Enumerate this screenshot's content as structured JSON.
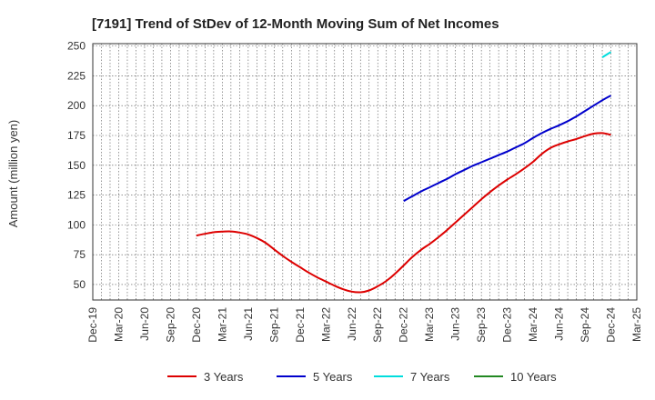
{
  "chart_data": {
    "type": "line",
    "title": "[7191]  Trend of StDev of 12-Month Moving Sum of Net Incomes",
    "xlabel": "",
    "ylabel": "Amount (million yen)",
    "ylim": [
      37,
      252
    ],
    "yticks": [
      50,
      75,
      100,
      125,
      150,
      175,
      200,
      225,
      250
    ],
    "xticks": [
      "Dec-19",
      "Mar-20",
      "Jun-20",
      "Sep-20",
      "Dec-20",
      "Mar-21",
      "Jun-21",
      "Sep-21",
      "Dec-21",
      "Mar-22",
      "Jun-22",
      "Sep-22",
      "Dec-22",
      "Mar-23",
      "Jun-23",
      "Sep-23",
      "Dec-23",
      "Mar-24",
      "Jun-24",
      "Sep-24",
      "Dec-24",
      "Mar-25"
    ],
    "grid": true,
    "legend_position": "bottom",
    "series": [
      {
        "name": "3 Years",
        "color": "#dd0000",
        "points": [
          [
            "Dec-20",
            91
          ],
          [
            "Jan-21",
            92.5
          ],
          [
            "Feb-21",
            93.8
          ],
          [
            "Mar-21",
            94.3
          ],
          [
            "Apr-21",
            94.5
          ],
          [
            "May-21",
            93.6
          ],
          [
            "Jun-21",
            92
          ],
          [
            "Jul-21",
            89
          ],
          [
            "Aug-21",
            85
          ],
          [
            "Sep-21",
            79.5
          ],
          [
            "Oct-21",
            74
          ],
          [
            "Nov-21",
            69
          ],
          [
            "Dec-21",
            64.5
          ],
          [
            "Jan-22",
            60
          ],
          [
            "Feb-22",
            56
          ],
          [
            "Mar-22",
            52.5
          ],
          [
            "Apr-22",
            49
          ],
          [
            "May-22",
            46
          ],
          [
            "Jun-22",
            44
          ],
          [
            "Jul-22",
            43.5
          ],
          [
            "Aug-22",
            45
          ],
          [
            "Sep-22",
            48.5
          ],
          [
            "Oct-22",
            53
          ],
          [
            "Nov-22",
            59
          ],
          [
            "Dec-22",
            66
          ],
          [
            "Jan-23",
            73
          ],
          [
            "Feb-23",
            79
          ],
          [
            "Mar-23",
            84
          ],
          [
            "Apr-23",
            89.5
          ],
          [
            "May-23",
            95.5
          ],
          [
            "Jun-23",
            102
          ],
          [
            "Jul-23",
            108.5
          ],
          [
            "Aug-23",
            115
          ],
          [
            "Sep-23",
            121.5
          ],
          [
            "Oct-23",
            127.5
          ],
          [
            "Nov-23",
            133
          ],
          [
            "Dec-23",
            138
          ],
          [
            "Jan-24",
            142.5
          ],
          [
            "Feb-24",
            147.5
          ],
          [
            "Mar-24",
            153
          ],
          [
            "Apr-24",
            159.5
          ],
          [
            "May-24",
            164.5
          ],
          [
            "Jun-24",
            167.5
          ],
          [
            "Jul-24",
            170
          ],
          [
            "Aug-24",
            172
          ],
          [
            "Sep-24",
            174.5
          ],
          [
            "Oct-24",
            176.5
          ],
          [
            "Nov-24",
            177
          ],
          [
            "Dec-24",
            175.5
          ]
        ]
      },
      {
        "name": "5 Years",
        "color": "#0000cc",
        "points": [
          [
            "Dec-22",
            120
          ],
          [
            "Jan-23",
            124
          ],
          [
            "Feb-23",
            128
          ],
          [
            "Mar-23",
            131.5
          ],
          [
            "Apr-23",
            135
          ],
          [
            "May-23",
            138.5
          ],
          [
            "Jun-23",
            142.5
          ],
          [
            "Jul-23",
            146
          ],
          [
            "Aug-23",
            149.5
          ],
          [
            "Sep-23",
            152.5
          ],
          [
            "Oct-23",
            155.5
          ],
          [
            "Nov-23",
            158.5
          ],
          [
            "Dec-23",
            161.5
          ],
          [
            "Jan-24",
            165
          ],
          [
            "Feb-24",
            168.5
          ],
          [
            "Mar-24",
            173
          ],
          [
            "Apr-24",
            177
          ],
          [
            "May-24",
            180.5
          ],
          [
            "Jun-24",
            183.5
          ],
          [
            "Jul-24",
            187
          ],
          [
            "Aug-24",
            191
          ],
          [
            "Sep-24",
            195.5
          ],
          [
            "Oct-24",
            200
          ],
          [
            "Nov-24",
            204.5
          ],
          [
            "Dec-24",
            208.5
          ]
        ]
      },
      {
        "name": "7 Years",
        "color": "#00dddd",
        "points": [
          [
            "Nov-24",
            240.5
          ],
          [
            "Dec-24",
            245
          ]
        ]
      },
      {
        "name": "10 Years",
        "color": "#228822",
        "points": []
      }
    ]
  }
}
